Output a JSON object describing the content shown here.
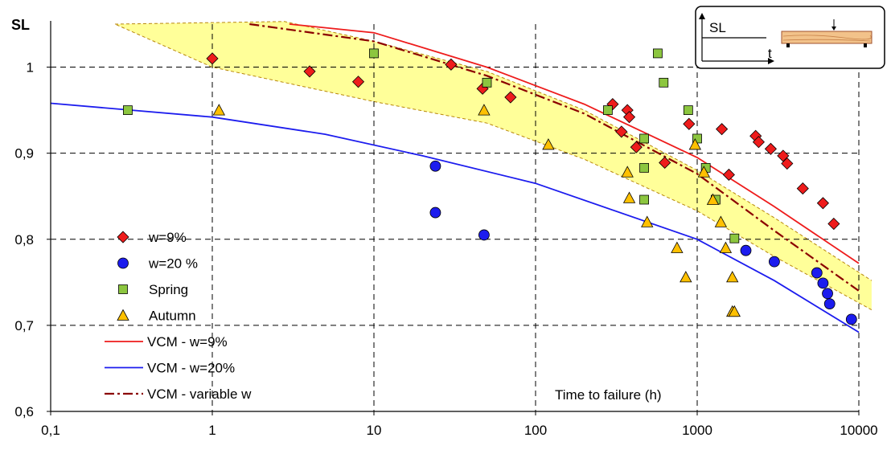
{
  "chart_data": {
    "type": "scatter",
    "title": "",
    "ylabel": "SL",
    "xlabel": "Time to failure (h)",
    "x_scale": "log",
    "xlim": [
      0.1,
      10000
    ],
    "ylim": [
      0.6,
      1.05
    ],
    "x_ticks": [
      "0,1",
      "1",
      "10",
      "100",
      "1000",
      "10000"
    ],
    "y_ticks": [
      "0,6",
      "0,7",
      "0,8",
      "0,9",
      "1"
    ],
    "grid": "dashed",
    "legend_position": "left",
    "series": [
      {
        "name": "w=9%",
        "kind": "diamond",
        "color": "#ee1c1c",
        "points": [
          [
            1.0,
            1.01
          ],
          [
            4.0,
            0.995
          ],
          [
            8.0,
            0.983
          ],
          [
            30,
            1.003
          ],
          [
            47,
            0.975
          ],
          [
            70,
            0.965
          ],
          [
            300,
            0.957
          ],
          [
            340,
            0.925
          ],
          [
            370,
            0.95
          ],
          [
            380,
            0.942
          ],
          [
            420,
            0.907
          ],
          [
            630,
            0.889
          ],
          [
            890,
            0.934
          ],
          [
            1420,
            0.928
          ],
          [
            1570,
            0.875
          ],
          [
            2300,
            0.92
          ],
          [
            2400,
            0.913
          ],
          [
            2850,
            0.905
          ],
          [
            3400,
            0.897
          ],
          [
            3600,
            0.888
          ],
          [
            4500,
            0.859
          ],
          [
            6000,
            0.842
          ],
          [
            7000,
            0.818
          ]
        ]
      },
      {
        "name": "w=20 %",
        "kind": "circle",
        "color": "#1c1cee",
        "points": [
          [
            24,
            0.885
          ],
          [
            24,
            0.831
          ],
          [
            48,
            0.805
          ],
          [
            2000,
            0.787
          ],
          [
            3000,
            0.774
          ],
          [
            5500,
            0.761
          ],
          [
            6000,
            0.749
          ],
          [
            6400,
            0.737
          ],
          [
            6600,
            0.725
          ],
          [
            9000,
            0.707
          ]
        ]
      },
      {
        "name": "Spring",
        "kind": "square",
        "color": "#8cc63f",
        "points": [
          [
            0.3,
            0.95
          ],
          [
            10,
            1.016
          ],
          [
            50,
            0.982
          ],
          [
            280,
            0.95
          ],
          [
            470,
            0.917
          ],
          [
            470,
            0.883
          ],
          [
            470,
            0.846
          ],
          [
            570,
            1.016
          ],
          [
            620,
            0.982
          ],
          [
            880,
            0.95
          ],
          [
            1000,
            0.917
          ],
          [
            1130,
            0.883
          ],
          [
            1300,
            0.846
          ],
          [
            1700,
            0.801
          ]
        ]
      },
      {
        "name": "Autumn",
        "kind": "triangle",
        "color": "#ffc000",
        "points": [
          [
            1.1,
            0.95
          ],
          [
            48,
            0.95
          ],
          [
            120,
            0.91
          ],
          [
            370,
            0.878
          ],
          [
            380,
            0.848
          ],
          [
            490,
            0.82
          ],
          [
            750,
            0.79
          ],
          [
            850,
            0.756
          ],
          [
            970,
            0.91
          ],
          [
            1100,
            0.878
          ],
          [
            1250,
            0.846
          ],
          [
            1400,
            0.82
          ],
          [
            1500,
            0.79
          ],
          [
            1650,
            0.756
          ],
          [
            1650,
            0.716
          ],
          [
            1700,
            0.716
          ]
        ]
      }
    ],
    "curves": [
      {
        "name": "VCM - w=9%",
        "color": "#ee1c1c",
        "dash": "solid",
        "points": [
          [
            3,
            1.05
          ],
          [
            10,
            1.04
          ],
          [
            50,
            1.0
          ],
          [
            200,
            0.957
          ],
          [
            1000,
            0.895
          ],
          [
            3000,
            0.838
          ],
          [
            10000,
            0.772
          ]
        ]
      },
      {
        "name": "VCM - w=20%",
        "color": "#1c1cee",
        "dash": "solid",
        "points": [
          [
            0.1,
            0.958
          ],
          [
            1,
            0.942
          ],
          [
            5,
            0.922
          ],
          [
            20,
            0.897
          ],
          [
            100,
            0.865
          ],
          [
            1000,
            0.8
          ],
          [
            3000,
            0.752
          ],
          [
            10000,
            0.692
          ]
        ]
      },
      {
        "name": "VCM - variable w",
        "color": "#8b0000",
        "dash": "dashdot",
        "points": [
          [
            1.7,
            1.05
          ],
          [
            10,
            1.03
          ],
          [
            50,
            0.99
          ],
          [
            200,
            0.946
          ],
          [
            1000,
            0.876
          ],
          [
            3000,
            0.81
          ],
          [
            10000,
            0.74
          ]
        ]
      }
    ],
    "band": {
      "color": "#ffff99",
      "upper": [
        [
          0.25,
          1.05
        ],
        [
          2.8,
          1.053
        ],
        [
          10,
          1.03
        ],
        [
          50,
          0.995
        ],
        [
          200,
          0.95
        ],
        [
          1000,
          0.88
        ],
        [
          3000,
          0.825
        ],
        [
          12000,
          0.752
        ]
      ],
      "lower": [
        [
          0.25,
          1.05
        ],
        [
          1,
          1.0
        ],
        [
          10,
          0.96
        ],
        [
          50,
          0.935
        ],
        [
          200,
          0.893
        ],
        [
          1000,
          0.833
        ],
        [
          3000,
          0.78
        ],
        [
          12000,
          0.718
        ]
      ]
    },
    "inset": {
      "ylabel": "SL",
      "xlabel": "t"
    }
  }
}
